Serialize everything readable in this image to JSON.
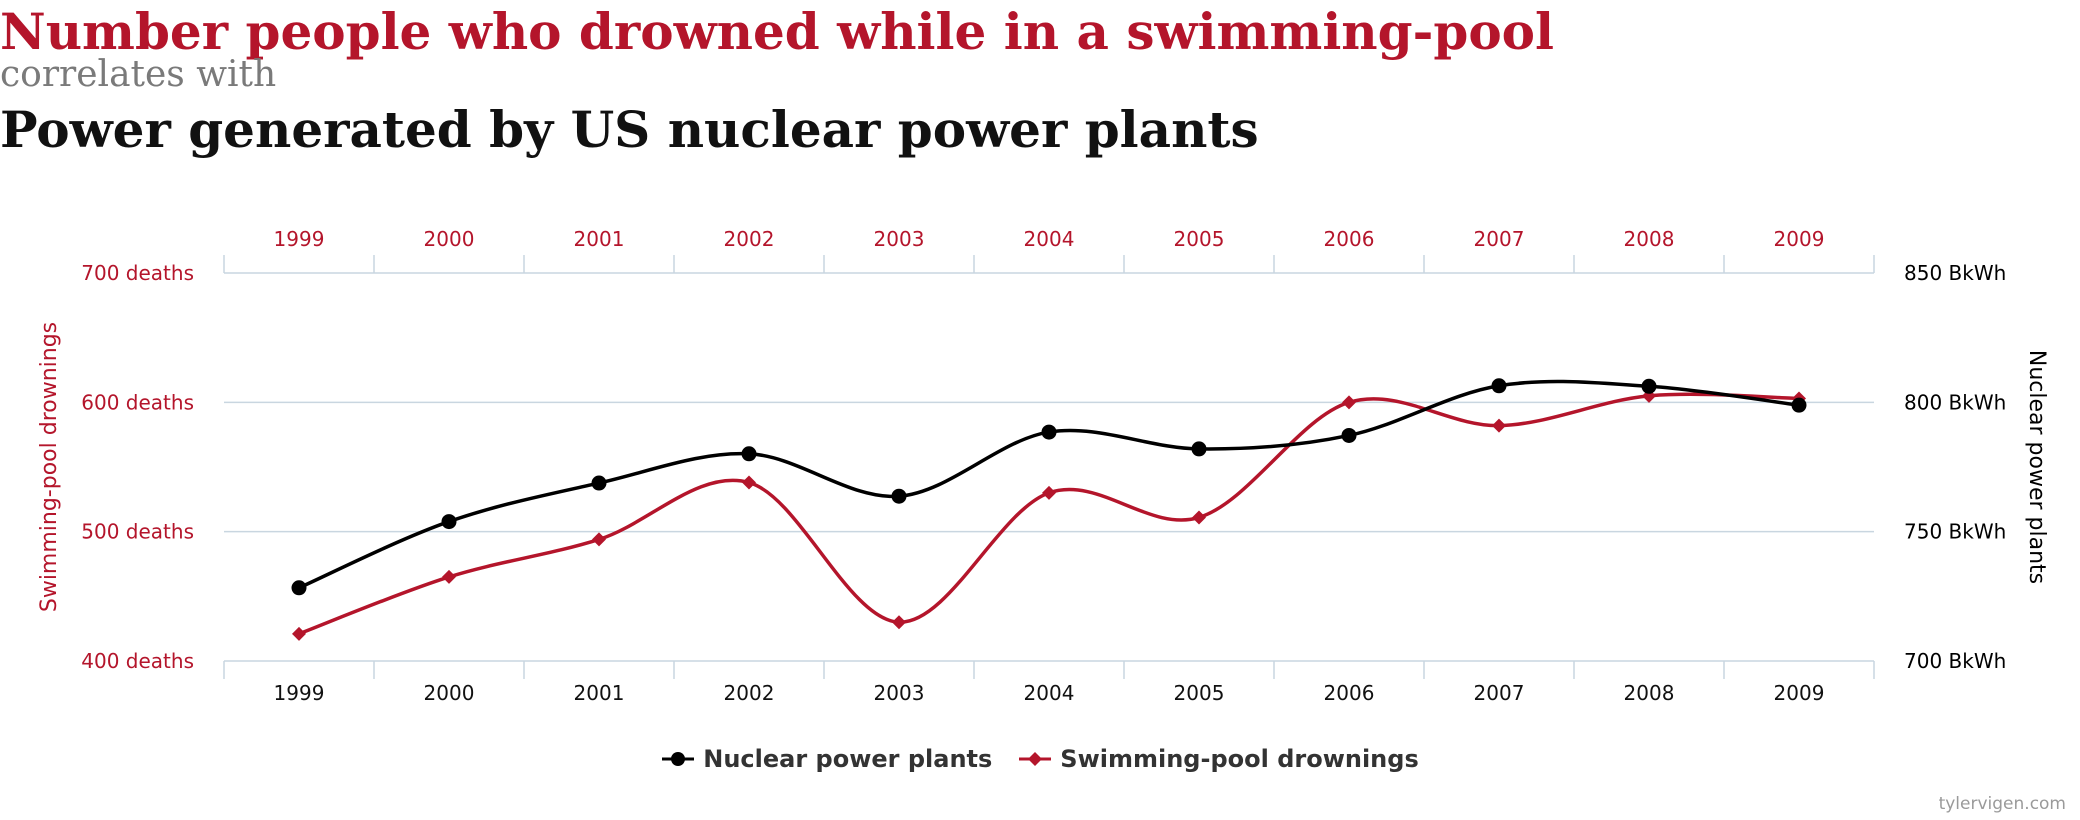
{
  "header": {
    "title_primary": "Number people who drowned while in a swimming-pool",
    "connector": "correlates with",
    "title_secondary": "Power generated by US nuclear power plants"
  },
  "chart_data": {
    "type": "line",
    "x": [
      "1999",
      "2000",
      "2001",
      "2002",
      "2003",
      "2004",
      "2005",
      "2006",
      "2007",
      "2008",
      "2009"
    ],
    "series": [
      {
        "name": "Nuclear power plants",
        "axis": "right",
        "color": "#000000",
        "marker": "circle",
        "values": [
          728.3,
          753.9,
          768.8,
          780.1,
          763.7,
          788.5,
          782.0,
          787.2,
          806.4,
          806.2,
          798.9
        ]
      },
      {
        "name": "Swimming-pool drownings",
        "axis": "left",
        "color": "#b4152b",
        "marker": "diamond",
        "values": [
          421,
          465,
          494,
          538,
          430,
          530,
          511,
          600,
          582,
          605,
          603
        ]
      }
    ],
    "left_axis": {
      "label": "Swimming-pool drownings",
      "ylim": [
        400,
        700
      ],
      "ticks": [
        "400 deaths",
        "500 deaths",
        "600 deaths",
        "700 deaths"
      ],
      "tick_values": [
        400,
        500,
        600,
        700
      ],
      "color": "#b4152b"
    },
    "right_axis": {
      "label": "Nuclear power plants",
      "ylim": [
        700,
        850
      ],
      "ticks": [
        "700 BkWh",
        "750 BkWh",
        "800 BkWh",
        "850 BkWh"
      ],
      "tick_values": [
        700,
        750,
        800,
        850
      ],
      "color": "#000000"
    },
    "top_axis_color": "#b4152b",
    "grid": true,
    "gridline_color": "#c9d6e0",
    "legend_placement": "bottom-center"
  },
  "footer": {
    "credit": "tylervigen.com"
  }
}
